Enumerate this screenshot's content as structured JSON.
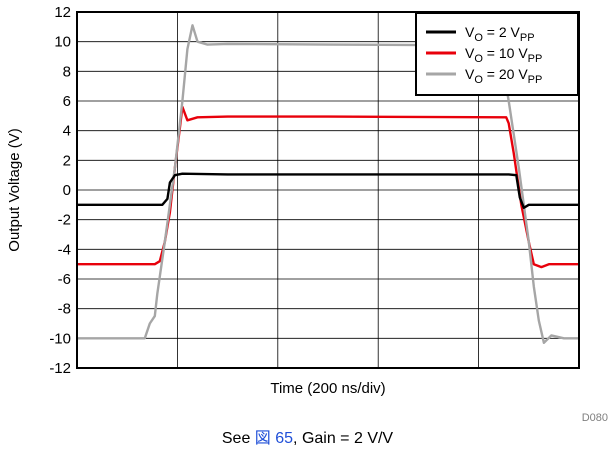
{
  "chart_data": {
    "type": "line",
    "xlabel": "Time (200 ns/div)",
    "ylabel": "Output Voltage (V)",
    "xlim": [
      0,
      10
    ],
    "ylim": [
      -12,
      12
    ],
    "x_divisions": 5,
    "y_ticks": [
      "12",
      "10",
      "8",
      "6",
      "4",
      "2",
      "0",
      "-2",
      "-4",
      "-6",
      "-8",
      "-10",
      "-12"
    ],
    "grid": true,
    "legend_position": "top-right",
    "series": [
      {
        "name_main": "V",
        "name_sub1": "O",
        "name_mid": " = 2 V",
        "name_sub2": "PP",
        "color": "#000000",
        "x": [
          0,
          1.7,
          1.8,
          1.85,
          1.95,
          2.1,
          3.0,
          5.0,
          7.0,
          8.6,
          8.75,
          8.82,
          8.9,
          9.0,
          9.3,
          10.0
        ],
        "y": [
          -1.0,
          -1.0,
          -0.6,
          0.5,
          1.0,
          1.1,
          1.05,
          1.05,
          1.05,
          1.05,
          1.0,
          -0.5,
          -1.2,
          -1.0,
          -1.0,
          -1.0
        ]
      },
      {
        "name_main": "V",
        "name_sub1": "O",
        "name_mid": " = 10 V",
        "name_sub2": "PP",
        "color": "#e8000b",
        "x": [
          0,
          1.55,
          1.65,
          1.75,
          1.85,
          1.95,
          2.05,
          2.1,
          2.2,
          2.4,
          3.0,
          5.0,
          8.55,
          8.6,
          8.7,
          8.85,
          9.0,
          9.1,
          9.25,
          9.4,
          10.0
        ],
        "y": [
          -5.0,
          -5.0,
          -4.8,
          -3.5,
          -1.5,
          1.5,
          4.2,
          5.6,
          4.7,
          4.9,
          4.95,
          4.95,
          4.9,
          4.5,
          2.5,
          -1.0,
          -3.5,
          -5.0,
          -5.2,
          -5.0,
          -5.0
        ]
      },
      {
        "name_main": "V",
        "name_sub1": "O",
        "name_mid": " = 20 V",
        "name_sub2": "PP",
        "color": "#a6a6a6",
        "x": [
          0,
          1.35,
          1.45,
          1.55,
          1.6,
          1.75,
          1.95,
          2.1,
          2.2,
          2.3,
          2.4,
          2.6,
          3.0,
          5.0,
          8.35,
          8.45,
          8.6,
          8.8,
          9.0,
          9.1,
          9.2,
          9.3,
          9.45,
          9.7,
          10.0
        ],
        "y": [
          -10.0,
          -10.0,
          -9.0,
          -8.5,
          -7.0,
          -3.5,
          1.5,
          6.0,
          9.5,
          11.1,
          10.0,
          9.8,
          9.85,
          9.8,
          9.75,
          9.0,
          6.0,
          1.5,
          -3.5,
          -6.5,
          -8.8,
          -10.3,
          -9.8,
          -10.0,
          -10.0
        ]
      }
    ]
  },
  "figure_id": "D080",
  "caption": {
    "prefix": "See ",
    "link": "図 65",
    "suffix": ", Gain = 2 V/V"
  }
}
